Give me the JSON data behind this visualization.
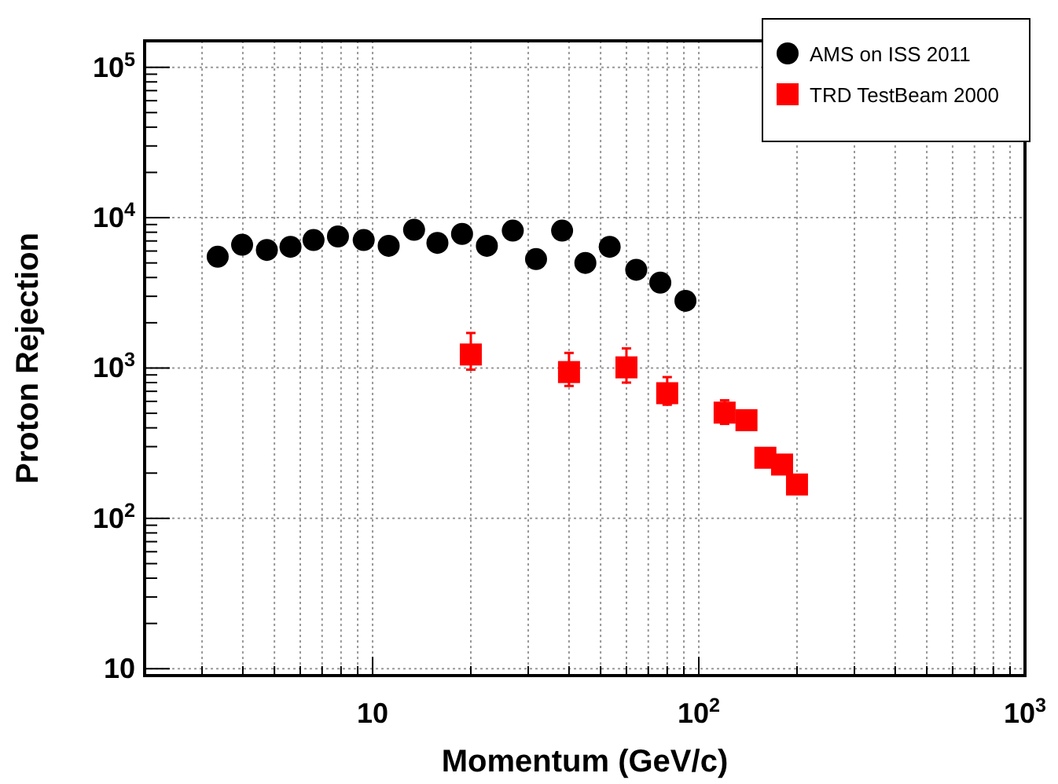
{
  "chart_data": {
    "type": "scatter",
    "xlabel": "Momentum (GeV/c)",
    "ylabel": "Proton Rejection",
    "log": "xy",
    "grid": true,
    "legend": "top right",
    "xlim": [
      2,
      1000
    ],
    "ylim": [
      9,
      150000
    ],
    "xticks": [
      {
        "value": 2,
        "label": null
      },
      {
        "value": 3,
        "label": null
      },
      {
        "value": 4,
        "label": null
      },
      {
        "value": 5,
        "label": null
      },
      {
        "value": 6,
        "label": null
      },
      {
        "value": 7,
        "label": null
      },
      {
        "value": 8,
        "label": null
      },
      {
        "value": 9,
        "label": null
      },
      10,
      {
        "value": 20,
        "label": null
      },
      {
        "value": 30,
        "label": null
      },
      {
        "value": 40,
        "label": null
      },
      {
        "value": 50,
        "label": null
      },
      {
        "value": 60,
        "label": null
      },
      {
        "value": 70,
        "label": null
      },
      {
        "value": 80,
        "label": null
      },
      {
        "value": 90,
        "label": null
      },
      {
        "value": 100,
        "label": "10$^{2}$"
      },
      {
        "value": 200,
        "label": null
      },
      {
        "value": 300,
        "label": null
      },
      {
        "value": 400,
        "label": null
      },
      {
        "value": 500,
        "label": null
      },
      {
        "value": 600,
        "label": null
      },
      {
        "value": 700,
        "label": null
      },
      {
        "value": 800,
        "label": null
      },
      {
        "value": 900,
        "label": null
      },
      {
        "value": 1000,
        "label": "10$^{3}$"
      }
    ],
    "yticks": [
      10,
      {
        "value": 100,
        "label": "10$^{2}$"
      },
      {
        "value": 1000,
        "label": "10$^{3}$"
      },
      {
        "value": 10000,
        "label": "10$^{4}$"
      },
      {
        "value": 100000,
        "label": "10$^{5}$"
      }
    ],
    "series": [
      {
        "name": "AMS on ISS 2011",
        "color": "#000000",
        "marker": "circle",
        "x": [
          3.35,
          3.98,
          4.74,
          5.6,
          6.59,
          7.83,
          9.39,
          11.2,
          13.4,
          15.8,
          18.8,
          22.4,
          26.9,
          31.7,
          38.1,
          44.9,
          53.3,
          64.3,
          76.2,
          91
        ],
        "values": [
          5500,
          6600,
          6100,
          6400,
          7100,
          7500,
          7100,
          6500,
          8300,
          6800,
          7800,
          6500,
          8200,
          5300,
          8200,
          5000,
          6400,
          4500,
          3700,
          2800
        ]
      },
      {
        "name": "TRD TestBeam 2000",
        "color": "#ff0000",
        "marker": "square",
        "x": [
          20,
          40,
          60,
          80,
          120,
          140,
          160,
          180,
          200
        ],
        "values": [
          1230,
          940,
          1010,
          680,
          505,
          450,
          253,
          228,
          168
        ],
        "errors": [
          [
            975,
            1710
          ],
          [
            760,
            1260
          ],
          [
            800,
            1350
          ],
          [
            570,
            870
          ],
          [
            425,
            610
          ],
          null,
          null,
          null,
          null
        ]
      }
    ]
  }
}
